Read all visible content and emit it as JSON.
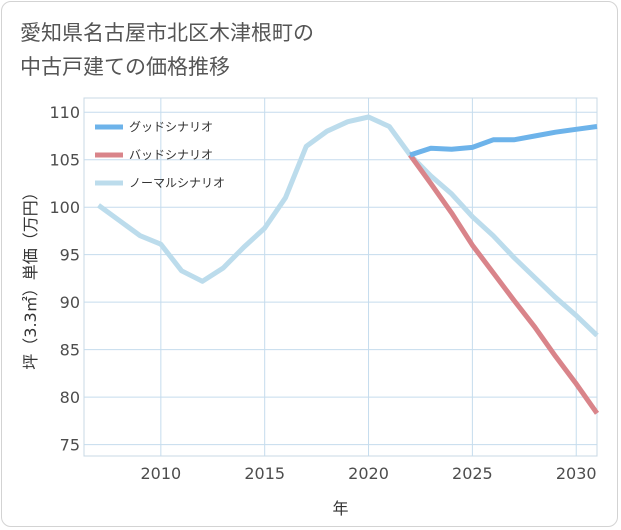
{
  "title": {
    "line1": "愛知県名古屋市北区木津根町の",
    "line2": "中古戸建ての価格推移"
  },
  "chart_data": {
    "type": "line",
    "xlabel": "年",
    "ylabel": "坪（3.3㎡）単価（万円）",
    "xlim": [
      2006.3,
      2031
    ],
    "ylim": [
      73.8,
      111.5
    ],
    "x_ticks": [
      2010,
      2015,
      2020,
      2025,
      2030
    ],
    "y_ticks": [
      75,
      80,
      85,
      90,
      95,
      100,
      105,
      110
    ],
    "grid": true,
    "legend_position": "top-left",
    "series": [
      {
        "name": "グッドシナリオ",
        "color": "#6db3ea",
        "x": [
          2022,
          2023,
          2024,
          2025,
          2026,
          2027,
          2028,
          2029,
          2030,
          2031
        ],
        "values": [
          105.5,
          106.2,
          106.1,
          106.3,
          107.1,
          107.1,
          107.5,
          107.9,
          108.2,
          108.5
        ]
      },
      {
        "name": "バッドシナリオ",
        "color": "#d9848a",
        "x": [
          2022,
          2023,
          2024,
          2025,
          2026,
          2027,
          2028,
          2029,
          2030,
          2031
        ],
        "values": [
          105.5,
          102.5,
          99.4,
          96.0,
          93.1,
          90.2,
          87.4,
          84.3,
          81.4,
          78.3
        ]
      },
      {
        "name": "ノーマルシナリオ",
        "color": "#bcdcec",
        "x": [
          2007,
          2008,
          2009,
          2010,
          2011,
          2012,
          2013,
          2014,
          2015,
          2016,
          2017,
          2018,
          2019,
          2020,
          2021,
          2022,
          2023,
          2024,
          2025,
          2026,
          2027,
          2028,
          2029,
          2030,
          2031
        ],
        "values": [
          100.2,
          98.6,
          97.0,
          96.1,
          93.3,
          92.2,
          93.6,
          95.8,
          97.8,
          101.0,
          106.4,
          108.0,
          109.0,
          109.5,
          108.5,
          105.5,
          103.3,
          101.4,
          99.0,
          97.0,
          94.7,
          92.6,
          90.5,
          88.6,
          86.5
        ]
      }
    ]
  }
}
